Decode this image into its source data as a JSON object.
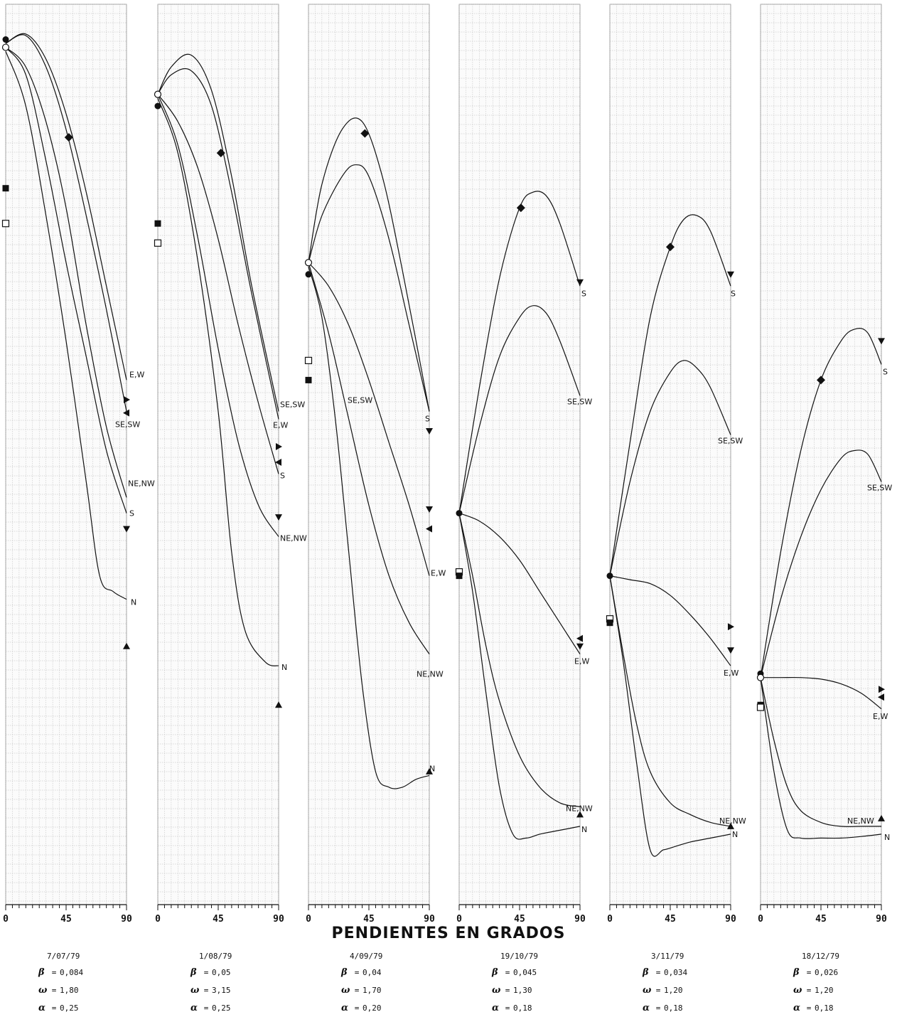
{
  "x_axis_title": "PENDIENTES EN GRADOS",
  "chart_data": [
    {
      "type": "line",
      "date": "7/07/79",
      "params": {
        "beta": "0,084",
        "omega": "1,80",
        "alpha": "0,25"
      },
      "x_ticks": [
        "0",
        "45",
        "90"
      ],
      "series": [
        {
          "name": "E,W",
          "x": [
            0,
            15,
            30,
            45,
            60,
            75,
            90
          ],
          "y": [
            0.8,
            0.812,
            0.78,
            0.71,
            0.61,
            0.49,
            0.37
          ]
        },
        {
          "name": "SE,SW",
          "x": [
            0,
            15,
            30,
            45,
            60,
            75,
            90
          ],
          "y": [
            0.8,
            0.81,
            0.77,
            0.69,
            0.58,
            0.46,
            0.33
          ]
        },
        {
          "name": "NE,NW",
          "x": [
            0,
            15,
            30,
            45,
            60,
            75,
            90
          ],
          "y": [
            0.795,
            0.77,
            0.7,
            0.59,
            0.44,
            0.31,
            0.22
          ]
        },
        {
          "name": "S",
          "x": [
            0,
            15,
            30,
            45,
            60,
            75,
            90
          ],
          "y": [
            0.795,
            0.76,
            0.65,
            0.52,
            0.4,
            0.28,
            0.2
          ]
        },
        {
          "name": "N",
          "x": [
            0,
            15,
            30,
            45,
            60,
            70,
            80,
            90
          ],
          "y": [
            0.79,
            0.72,
            0.58,
            0.42,
            0.24,
            0.12,
            0.1,
            0.09
          ]
        }
      ],
      "markers": [
        {
          "shape": "filled-circle",
          "x": 0,
          "y": 0.805
        },
        {
          "shape": "open-circle",
          "x": 0,
          "y": 0.795
        },
        {
          "shape": "filled-square",
          "x": 0,
          "y": 0.615
        },
        {
          "shape": "open-square",
          "x": 0,
          "y": 0.57
        },
        {
          "shape": "diamond",
          "x": 47,
          "y": 0.68
        },
        {
          "shape": "tri-right",
          "x": 90,
          "y": 0.345
        },
        {
          "shape": "tri-left",
          "x": 90,
          "y": 0.328
        },
        {
          "shape": "tri-down",
          "x": 90,
          "y": 0.18
        },
        {
          "shape": "tri-up",
          "x": 90,
          "y": 0.03
        }
      ]
    },
    {
      "type": "line",
      "date": "1/08/79",
      "params": {
        "beta": "0,05",
        "omega": "3,15",
        "alpha": "0,25"
      },
      "x_ticks": [
        "0",
        "45",
        "90"
      ],
      "series": [
        {
          "name": "SE,SW",
          "x": [
            0,
            10,
            25,
            40,
            55,
            70,
            90
          ],
          "y": [
            0.735,
            0.77,
            0.785,
            0.74,
            0.63,
            0.49,
            0.33
          ]
        },
        {
          "name": "E,W",
          "x": [
            0,
            10,
            25,
            40,
            55,
            70,
            90
          ],
          "y": [
            0.735,
            0.76,
            0.765,
            0.72,
            0.61,
            0.48,
            0.32
          ]
        },
        {
          "name": "S",
          "x": [
            0,
            15,
            30,
            45,
            60,
            75,
            90
          ],
          "y": [
            0.735,
            0.7,
            0.64,
            0.55,
            0.44,
            0.34,
            0.25
          ]
        },
        {
          "name": "NE,NW",
          "x": [
            0,
            15,
            30,
            45,
            60,
            75,
            90
          ],
          "y": [
            0.735,
            0.67,
            0.55,
            0.41,
            0.29,
            0.21,
            0.17
          ]
        },
        {
          "name": "N",
          "x": [
            0,
            15,
            30,
            45,
            55,
            65,
            80,
            90
          ],
          "y": [
            0.73,
            0.66,
            0.52,
            0.33,
            0.15,
            0.05,
            0.01,
            0.005
          ]
        }
      ],
      "markers": [
        {
          "shape": "open-circle",
          "x": 0,
          "y": 0.735
        },
        {
          "shape": "filled-circle",
          "x": 0,
          "y": 0.72
        },
        {
          "shape": "filled-square",
          "x": 0,
          "y": 0.57
        },
        {
          "shape": "open-square",
          "x": 0,
          "y": 0.545
        },
        {
          "shape": "diamond",
          "x": 47,
          "y": 0.66
        },
        {
          "shape": "tri-right",
          "x": 90,
          "y": 0.285
        },
        {
          "shape": "tri-left",
          "x": 90,
          "y": 0.265
        },
        {
          "shape": "tri-down",
          "x": 90,
          "y": 0.195
        },
        {
          "shape": "tri-up",
          "x": 90,
          "y": -0.045
        }
      ]
    },
    {
      "type": "line",
      "date": "4/09/79",
      "params": {
        "beta": "0,04",
        "omega": "1,70",
        "alpha": "0,20"
      },
      "x_ticks": [
        "0",
        "45",
        "90"
      ],
      "series": [
        {
          "name": "S",
          "x": [
            0,
            10,
            25,
            40,
            55,
            70,
            90
          ],
          "y": [
            0.52,
            0.62,
            0.69,
            0.7,
            0.63,
            0.51,
            0.33
          ]
        },
        {
          "name": "SE,SW",
          "x": [
            0,
            10,
            25,
            35,
            45,
            60,
            75,
            90
          ],
          "y": [
            0.52,
            0.58,
            0.63,
            0.645,
            0.63,
            0.55,
            0.44,
            0.33
          ]
        },
        {
          "name": "E,W",
          "x": [
            0,
            15,
            30,
            45,
            60,
            75,
            90
          ],
          "y": [
            0.52,
            0.49,
            0.44,
            0.37,
            0.29,
            0.21,
            0.12
          ]
        },
        {
          "name": "NE,NW",
          "x": [
            0,
            15,
            30,
            45,
            60,
            75,
            90
          ],
          "y": [
            0.52,
            0.43,
            0.32,
            0.21,
            0.12,
            0.06,
            0.02
          ]
        },
        {
          "name": "N",
          "x": [
            0,
            10,
            20,
            30,
            40,
            50,
            60,
            70,
            80,
            90
          ],
          "y": [
            0.515,
            0.45,
            0.32,
            0.15,
            -0.02,
            -0.13,
            -0.15,
            -0.15,
            -0.14,
            -0.135
          ]
        }
      ],
      "markers": [
        {
          "shape": "open-circle",
          "x": 0,
          "y": 0.52
        },
        {
          "shape": "filled-circle",
          "x": 0,
          "y": 0.505
        },
        {
          "shape": "open-square",
          "x": 0,
          "y": 0.395
        },
        {
          "shape": "filled-square",
          "x": 0,
          "y": 0.37
        },
        {
          "shape": "diamond",
          "x": 42,
          "y": 0.685
        },
        {
          "shape": "tri-down",
          "x": 90,
          "y": 0.305
        },
        {
          "shape": "tri-down",
          "x": 90,
          "y": 0.205
        },
        {
          "shape": "tri-left",
          "x": 90,
          "y": 0.18
        },
        {
          "shape": "tri-up",
          "x": 90,
          "y": -0.13
        }
      ]
    },
    {
      "type": "line",
      "date": "19/10/79",
      "params": {
        "beta": "0,045",
        "omega": "1,30",
        "alpha": "0,18"
      },
      "x_ticks": [
        "0",
        "45",
        "90"
      ],
      "series": [
        {
          "name": "S",
          "x": [
            0,
            15,
            30,
            45,
            55,
            65,
            75,
            90
          ],
          "y": [
            0.2,
            0.36,
            0.5,
            0.59,
            0.61,
            0.605,
            0.57,
            0.49
          ]
        },
        {
          "name": "SE,SW",
          "x": [
            0,
            15,
            30,
            45,
            55,
            65,
            75,
            90
          ],
          "y": [
            0.2,
            0.31,
            0.4,
            0.45,
            0.465,
            0.455,
            0.42,
            0.35
          ]
        },
        {
          "name": "E,W",
          "x": [
            0,
            15,
            30,
            45,
            60,
            75,
            90
          ],
          "y": [
            0.2,
            0.19,
            0.17,
            0.14,
            0.1,
            0.06,
            0.02
          ]
        },
        {
          "name": "NE,NW",
          "x": [
            0,
            10,
            20,
            30,
            45,
            60,
            75,
            90
          ],
          "y": [
            0.2,
            0.12,
            0.03,
            -0.04,
            -0.11,
            -0.15,
            -0.17,
            -0.175
          ]
        },
        {
          "name": "N",
          "x": [
            0,
            10,
            20,
            30,
            40,
            50,
            60,
            75,
            90
          ],
          "y": [
            0.2,
            0.1,
            -0.03,
            -0.15,
            -0.21,
            -0.215,
            -0.21,
            -0.205,
            -0.2
          ]
        }
      ],
      "markers": [
        {
          "shape": "filled-circle",
          "x": 0,
          "y": 0.2
        },
        {
          "shape": "open-square",
          "x": 0,
          "y": 0.125
        },
        {
          "shape": "filled-square",
          "x": 0,
          "y": 0.12
        },
        {
          "shape": "diamond",
          "x": 46,
          "y": 0.59
        },
        {
          "shape": "tri-down",
          "x": 90,
          "y": 0.495
        },
        {
          "shape": "tri-left",
          "x": 90,
          "y": 0.04
        },
        {
          "shape": "tri-down",
          "x": 90,
          "y": 0.03
        },
        {
          "shape": "tri-up",
          "x": 90,
          "y": -0.185
        }
      ]
    },
    {
      "type": "line",
      "date": "3/11/79",
      "params": {
        "beta": "0,034",
        "omega": "1,20",
        "alpha": "0,18"
      },
      "x_ticks": [
        "0",
        "45",
        "90"
      ],
      "series": [
        {
          "name": "S",
          "x": [
            0,
            15,
            30,
            45,
            55,
            65,
            75,
            90
          ],
          "y": [
            0.12,
            0.29,
            0.45,
            0.54,
            0.575,
            0.58,
            0.56,
            0.49
          ]
        },
        {
          "name": "SE,SW",
          "x": [
            0,
            15,
            30,
            45,
            55,
            65,
            75,
            90
          ],
          "y": [
            0.12,
            0.24,
            0.33,
            0.38,
            0.395,
            0.385,
            0.36,
            0.3
          ]
        },
        {
          "name": "E,W",
          "x": [
            0,
            15,
            30,
            45,
            60,
            75,
            90
          ],
          "y": [
            0.12,
            0.115,
            0.11,
            0.095,
            0.07,
            0.04,
            0.005
          ]
        },
        {
          "name": "NE,NW",
          "x": [
            0,
            10,
            20,
            30,
            45,
            60,
            75,
            90
          ],
          "y": [
            0.12,
            0.02,
            -0.07,
            -0.13,
            -0.17,
            -0.185,
            -0.195,
            -0.2
          ]
        },
        {
          "name": "N",
          "x": [
            0,
            10,
            20,
            30,
            40,
            50,
            60,
            75,
            90
          ],
          "y": [
            0.12,
            0.01,
            -0.12,
            -0.23,
            -0.23,
            -0.225,
            -0.22,
            -0.215,
            -0.21
          ]
        }
      ],
      "markers": [
        {
          "shape": "filled-circle",
          "x": 0,
          "y": 0.12
        },
        {
          "shape": "open-square",
          "x": 0,
          "y": 0.065
        },
        {
          "shape": "filled-square",
          "x": 0,
          "y": 0.06
        },
        {
          "shape": "diamond",
          "x": 45,
          "y": 0.54
        },
        {
          "shape": "tri-down",
          "x": 90,
          "y": 0.505
        },
        {
          "shape": "tri-right",
          "x": 90,
          "y": 0.055
        },
        {
          "shape": "tri-down",
          "x": 90,
          "y": 0.025
        },
        {
          "shape": "tri-up",
          "x": 90,
          "y": -0.2
        }
      ]
    },
    {
      "type": "line",
      "date": "18/12/79",
      "params": {
        "beta": "0,026",
        "omega": "1,20",
        "alpha": "0,18"
      },
      "x_ticks": [
        "0",
        "45",
        "90"
      ],
      "series": [
        {
          "name": "S",
          "x": [
            0,
            15,
            30,
            45,
            60,
            70,
            80,
            90
          ],
          "y": [
            -0.01,
            0.15,
            0.28,
            0.37,
            0.42,
            0.435,
            0.43,
            0.39
          ]
        },
        {
          "name": "SE,SW",
          "x": [
            0,
            15,
            30,
            45,
            60,
            70,
            80,
            90
          ],
          "y": [
            -0.01,
            0.09,
            0.17,
            0.23,
            0.27,
            0.28,
            0.275,
            0.24
          ]
        },
        {
          "name": "E,W",
          "x": [
            0,
            15,
            30,
            45,
            60,
            75,
            90
          ],
          "y": [
            -0.01,
            -0.01,
            -0.01,
            -0.012,
            -0.018,
            -0.03,
            -0.05
          ]
        },
        {
          "name": "NE,NW",
          "x": [
            0,
            10,
            20,
            30,
            45,
            60,
            75,
            90
          ],
          "y": [
            -0.01,
            -0.09,
            -0.15,
            -0.18,
            -0.195,
            -0.2,
            -0.2,
            -0.2
          ]
        },
        {
          "name": "N",
          "x": [
            0,
            10,
            20,
            30,
            45,
            60,
            75,
            90
          ],
          "y": [
            -0.01,
            -0.13,
            -0.205,
            -0.215,
            -0.215,
            -0.215,
            -0.213,
            -0.21
          ]
        }
      ],
      "markers": [
        {
          "shape": "filled-circle",
          "x": 0,
          "y": -0.005
        },
        {
          "shape": "open-circle",
          "x": 0,
          "y": -0.01
        },
        {
          "shape": "filled-square",
          "x": 0,
          "y": -0.045
        },
        {
          "shape": "open-square",
          "x": 0,
          "y": -0.048
        },
        {
          "shape": "diamond",
          "x": 45,
          "y": 0.37
        },
        {
          "shape": "tri-down",
          "x": 90,
          "y": 0.42
        },
        {
          "shape": "tri-right",
          "x": 90,
          "y": -0.025
        },
        {
          "shape": "tri-left",
          "x": 90,
          "y": -0.035
        },
        {
          "shape": "tri-up",
          "x": 90,
          "y": -0.19
        }
      ]
    }
  ]
}
